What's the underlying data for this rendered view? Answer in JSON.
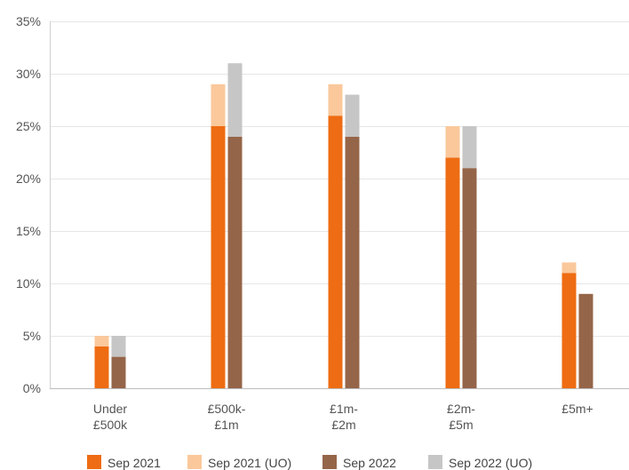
{
  "chart_data": {
    "type": "bar",
    "stacked": true,
    "categories": [
      [
        "Under",
        "£500k"
      ],
      [
        "£500k-",
        "£1m"
      ],
      [
        "£1m-",
        "£2m"
      ],
      [
        "£2m-",
        "£5m"
      ],
      [
        "£5m+"
      ]
    ],
    "groups": [
      {
        "name": "Sep 2021",
        "series": [
          {
            "name": "Sep 2021",
            "color": "#EE6C13",
            "values": [
              4,
              25,
              26,
              22,
              11
            ]
          },
          {
            "name": "Sep 2021 (UO)",
            "color": "#FAC89B",
            "values": [
              1,
              4,
              3,
              3,
              1
            ]
          }
        ]
      },
      {
        "name": "Sep 2022",
        "series": [
          {
            "name": "Sep 2022",
            "color": "#956549",
            "values": [
              3,
              24,
              24,
              21,
              9
            ]
          },
          {
            "name": "Sep 2022 (UO)",
            "color": "#C6C6C6",
            "values": [
              2,
              7,
              4,
              4,
              0
            ]
          }
        ]
      }
    ],
    "ylim": [
      0,
      35
    ],
    "yticks": [
      0,
      5,
      10,
      15,
      20,
      25,
      30,
      35
    ],
    "ytick_format": "%",
    "grid": true,
    "legend": {
      "position": "bottom",
      "entries": [
        {
          "label": "Sep 2021",
          "color": "#EE6C13"
        },
        {
          "label": "Sep 2021 (UO)",
          "color": "#FAC89B"
        },
        {
          "label": "Sep 2022",
          "color": "#956549"
        },
        {
          "label": "Sep 2022 (UO)",
          "color": "#C6C6C6"
        }
      ]
    }
  }
}
